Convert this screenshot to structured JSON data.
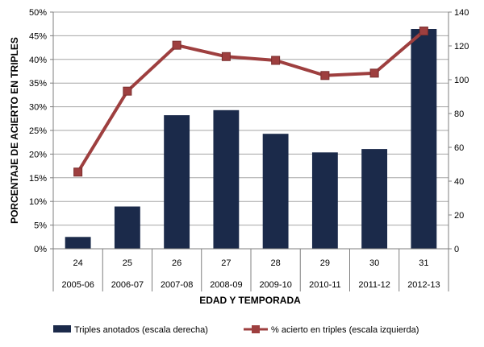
{
  "chart_data": {
    "type": "bar+line",
    "categories": [
      "24",
      "25",
      "26",
      "27",
      "28",
      "29",
      "30",
      "31"
    ],
    "sub_categories": [
      "2005-06",
      "2006-07",
      "2007-08",
      "2008-09",
      "2009-10",
      "2010-11",
      "2011-12",
      "2012-13"
    ],
    "xlabel": "EDAD Y TEMPORADA",
    "ylabel_left": "PORCENTAJE DE ACIERTO EN TRIPLES",
    "ylabel_right": "",
    "y_left": {
      "min": 0,
      "max": 0.5,
      "step": 0.05,
      "tick_labels": [
        "0%",
        "5%",
        "10%",
        "15%",
        "20%",
        "25%",
        "30%",
        "35%",
        "40%",
        "45%",
        "50%"
      ]
    },
    "y_right": {
      "min": 0,
      "max": 140,
      "step": 20,
      "tick_labels": [
        "0",
        "20",
        "40",
        "60",
        "80",
        "100",
        "120",
        "140"
      ]
    },
    "grid": true,
    "legend_position": "bottom",
    "series": [
      {
        "name": "Triples anotados (escala derecha)",
        "type": "bar",
        "axis": "right",
        "color": "#1b2a4a",
        "values": [
          7,
          25,
          79,
          82,
          68,
          57,
          59,
          130
        ]
      },
      {
        "name": "% acierto en triples (escala izquierda)",
        "type": "line",
        "axis": "left",
        "color": "#9e3f3f",
        "values": [
          0.162,
          0.333,
          0.43,
          0.406,
          0.398,
          0.366,
          0.371,
          0.46
        ]
      }
    ]
  }
}
